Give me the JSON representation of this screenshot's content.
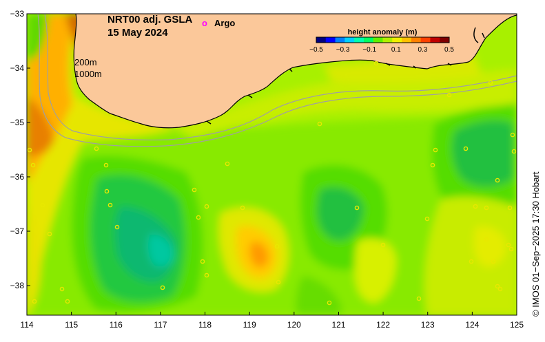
{
  "map": {
    "title_line1": "NRT00 adj. GSLA",
    "title_line2": "15 May 2024",
    "argo_legend_symbol": "o",
    "argo_legend_label": "Argo",
    "isobath_labels": [
      "200m",
      "1000m"
    ],
    "x_ticks": [
      "114",
      "115",
      "116",
      "117",
      "118",
      "119",
      "120",
      "121",
      "122",
      "123",
      "124",
      "125"
    ],
    "y_ticks": [
      "−33",
      "−34",
      "−35",
      "−36",
      "−37",
      "−38"
    ],
    "colorbar": {
      "title": "height anomaly (m)",
      "ticks": [
        "−0.5",
        "−0.3",
        "−0.1",
        "0.1",
        "0.3",
        "0.5"
      ],
      "colors": [
        "#000080",
        "#0000ff",
        "#0080ff",
        "#00d0ff",
        "#00ffb0",
        "#00ff60",
        "#60f000",
        "#b0f000",
        "#f0f000",
        "#ffc000",
        "#ff8000",
        "#ff4000",
        "#c00000",
        "#800000"
      ]
    },
    "credit": "© IMOS 01−Sep−2025 17:30 Hobart",
    "land_color": "#fbc89a",
    "argo_marker_color": "#ff00ff"
  }
}
